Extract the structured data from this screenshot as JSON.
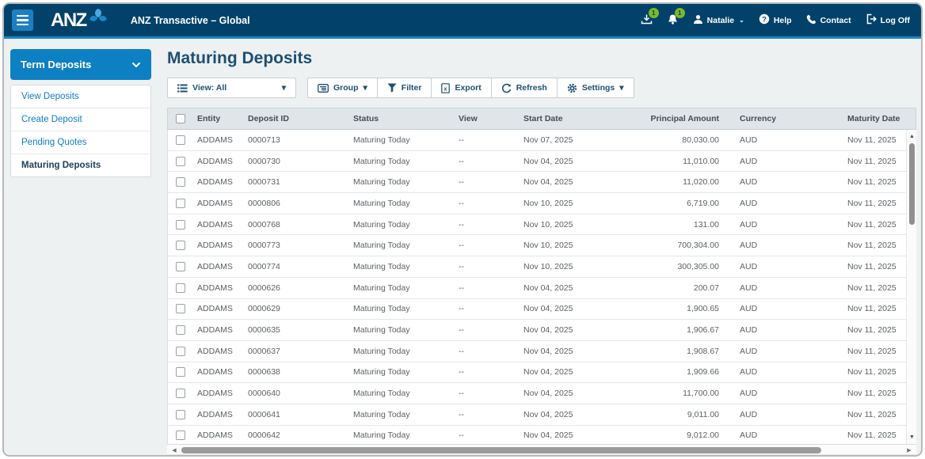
{
  "header": {
    "logo_text": "ANZ",
    "app_title": "ANZ Transactive – Global",
    "download_badge": "1",
    "notification_badge": "1",
    "user_name": "Natalie",
    "help_label": "Help",
    "contact_label": "Contact",
    "logoff_label": "Log Off"
  },
  "sidebar": {
    "section_title": "Term Deposits",
    "items": [
      {
        "label": "View Deposits",
        "active": false
      },
      {
        "label": "Create Deposit",
        "active": false
      },
      {
        "label": "Pending Quotes",
        "active": false
      },
      {
        "label": "Maturing Deposits",
        "active": true
      }
    ]
  },
  "main": {
    "page_title": "Maturing Deposits",
    "toolbar": {
      "view_label": "View: All",
      "group_label": "Group",
      "filter_label": "Filter",
      "export_label": "Export",
      "refresh_label": "Refresh",
      "settings_label": "Settings"
    },
    "table": {
      "columns": [
        "Entity",
        "Deposit ID",
        "Status",
        "View",
        "Start Date",
        "Principal Amount",
        "Currency",
        "Maturity Date"
      ],
      "rows": [
        {
          "entity": "ADDAMS",
          "deposit_id": "0000713",
          "status": "Maturing Today",
          "view": "--",
          "start_date": "Nov 07, 2025",
          "principal_amount": "80,030.00",
          "currency": "AUD",
          "maturity_date": "Nov 11, 2025"
        },
        {
          "entity": "ADDAMS",
          "deposit_id": "0000730",
          "status": "Maturing Today",
          "view": "--",
          "start_date": "Nov 04, 2025",
          "principal_amount": "11,010.00",
          "currency": "AUD",
          "maturity_date": "Nov 11, 2025"
        },
        {
          "entity": "ADDAMS",
          "deposit_id": "0000731",
          "status": "Maturing Today",
          "view": "--",
          "start_date": "Nov 04, 2025",
          "principal_amount": "11,020.00",
          "currency": "AUD",
          "maturity_date": "Nov 11, 2025"
        },
        {
          "entity": "ADDAMS",
          "deposit_id": "0000806",
          "status": "Maturing Today",
          "view": "--",
          "start_date": "Nov 10, 2025",
          "principal_amount": "6,719.00",
          "currency": "AUD",
          "maturity_date": "Nov 11, 2025"
        },
        {
          "entity": "ADDAMS",
          "deposit_id": "0000768",
          "status": "Maturing Today",
          "view": "--",
          "start_date": "Nov 10, 2025",
          "principal_amount": "131.00",
          "currency": "AUD",
          "maturity_date": "Nov 11, 2025"
        },
        {
          "entity": "ADDAMS",
          "deposit_id": "0000773",
          "status": "Maturing Today",
          "view": "--",
          "start_date": "Nov 10, 2025",
          "principal_amount": "700,304.00",
          "currency": "AUD",
          "maturity_date": "Nov 11, 2025"
        },
        {
          "entity": "ADDAMS",
          "deposit_id": "0000774",
          "status": "Maturing Today",
          "view": "--",
          "start_date": "Nov 10, 2025",
          "principal_amount": "300,305.00",
          "currency": "AUD",
          "maturity_date": "Nov 11, 2025"
        },
        {
          "entity": "ADDAMS",
          "deposit_id": "0000626",
          "status": "Maturing Today",
          "view": "--",
          "start_date": "Nov 04, 2025",
          "principal_amount": "200.07",
          "currency": "AUD",
          "maturity_date": "Nov 11, 2025"
        },
        {
          "entity": "ADDAMS",
          "deposit_id": "0000629",
          "status": "Maturing Today",
          "view": "--",
          "start_date": "Nov 04, 2025",
          "principal_amount": "1,900.65",
          "currency": "AUD",
          "maturity_date": "Nov 11, 2025"
        },
        {
          "entity": "ADDAMS",
          "deposit_id": "0000635",
          "status": "Maturing Today",
          "view": "--",
          "start_date": "Nov 04, 2025",
          "principal_amount": "1,906.67",
          "currency": "AUD",
          "maturity_date": "Nov 11, 2025"
        },
        {
          "entity": "ADDAMS",
          "deposit_id": "0000637",
          "status": "Maturing Today",
          "view": "--",
          "start_date": "Nov 04, 2025",
          "principal_amount": "1,908.67",
          "currency": "AUD",
          "maturity_date": "Nov 11, 2025"
        },
        {
          "entity": "ADDAMS",
          "deposit_id": "0000638",
          "status": "Maturing Today",
          "view": "--",
          "start_date": "Nov 04, 2025",
          "principal_amount": "1,909.66",
          "currency": "AUD",
          "maturity_date": "Nov 11, 2025"
        },
        {
          "entity": "ADDAMS",
          "deposit_id": "0000640",
          "status": "Maturing Today",
          "view": "--",
          "start_date": "Nov 04, 2025",
          "principal_amount": "11,700.00",
          "currency": "AUD",
          "maturity_date": "Nov 11, 2025"
        },
        {
          "entity": "ADDAMS",
          "deposit_id": "0000641",
          "status": "Maturing Today",
          "view": "--",
          "start_date": "Nov 04, 2025",
          "principal_amount": "9,011.00",
          "currency": "AUD",
          "maturity_date": "Nov 11, 2025"
        },
        {
          "entity": "ADDAMS",
          "deposit_id": "0000642",
          "status": "Maturing Today",
          "view": "--",
          "start_date": "Nov 04, 2025",
          "principal_amount": "9,012.00",
          "currency": "AUD",
          "maturity_date": "Nov 11, 2025"
        }
      ]
    }
  },
  "icons": {
    "caret_down": "▾",
    "scroll_up": "▲",
    "scroll_down": "▼",
    "scroll_left": "◀",
    "scroll_right": "▶"
  },
  "colors": {
    "header_navy": "#02426a",
    "accent_blue": "#0d80c4",
    "strip_blue": "#1886c8",
    "link_blue": "#0d7ec0",
    "badge_green": "#7cb928",
    "title_navy": "#1d4f73",
    "table_header_bg": "#dfe5e9"
  }
}
